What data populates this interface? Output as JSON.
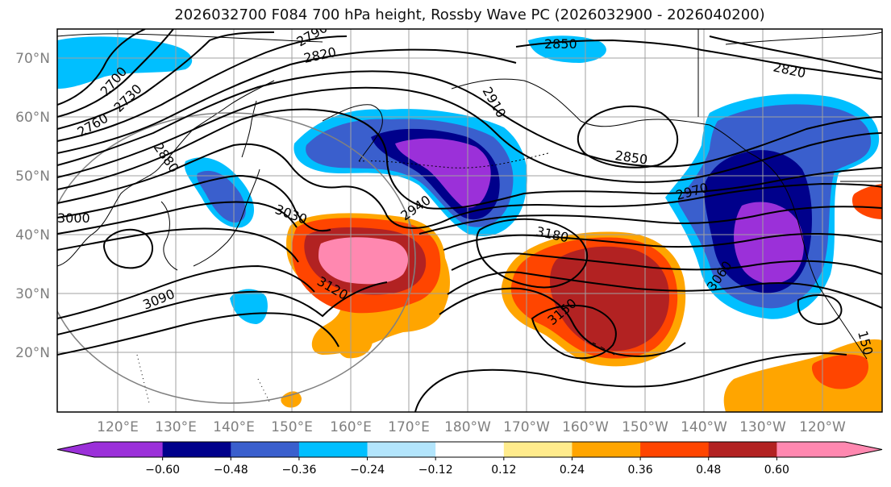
{
  "title": "2026032700 F084 700 hPa height, Rossby Wave PC (2026032900 - 2026040200)",
  "latitude_labels": [
    "70°N",
    "60°N",
    "50°N",
    "40°N",
    "30°N",
    "20°N"
  ],
  "longitude_labels": [
    "120°E",
    "130°E",
    "140°E",
    "150°E",
    "160°E",
    "170°E",
    "180°W",
    "170°W",
    "160°W",
    "150°W",
    "140°W",
    "130°W",
    "120°W"
  ],
  "contour_labels": [
    "2790",
    "2820",
    "2850",
    "2820",
    "2700",
    "2730",
    "2760",
    "2910",
    "2880",
    "2850",
    "2970",
    "3000",
    "3030",
    "2940",
    "3180",
    "3060",
    "3090",
    "3120",
    "3150",
    "150"
  ],
  "colorbar": {
    "tick_labels": [
      "−0.60",
      "−0.48",
      "−0.36",
      "−0.24",
      "−0.12",
      "0.12",
      "0.24",
      "0.36",
      "0.48",
      "0.60"
    ],
    "colors": [
      "#9b30d9",
      "#00008b",
      "#3a5fcd",
      "#00bfff",
      "#b3e5fc",
      "#ffffff",
      "#ffeb8c",
      "#ffa500",
      "#ff4500",
      "#b22222",
      "#ff88b0"
    ],
    "under_color": "#9b30d9",
    "over_color": "#ff88b0"
  },
  "palette": {
    "grid": "#a0a0a0",
    "coast": "#000000",
    "contour": "#000000",
    "tick_text": "#7f7f7f"
  }
}
